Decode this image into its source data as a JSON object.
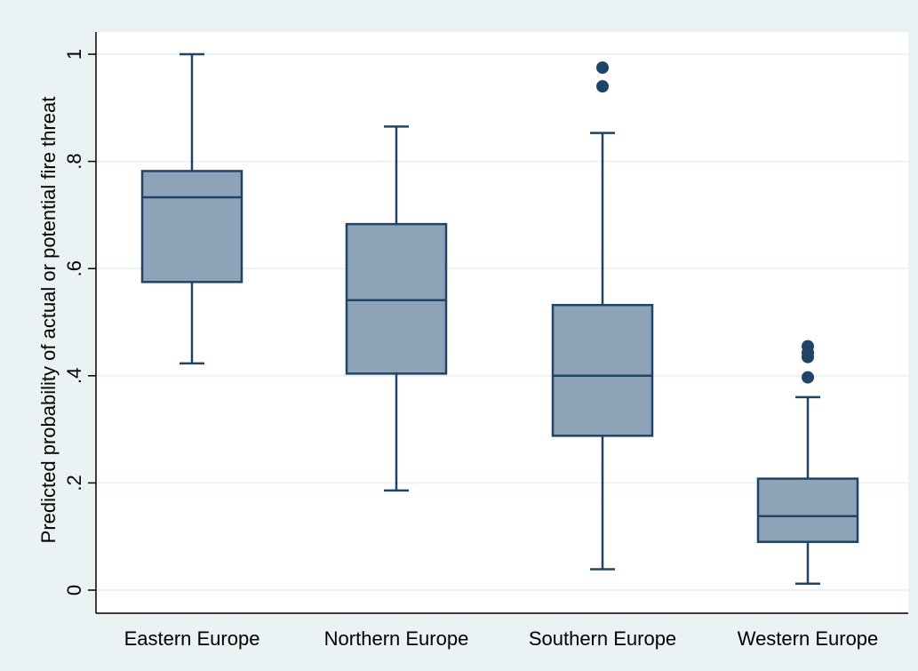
{
  "chart_data": {
    "type": "box",
    "title": "",
    "xlabel": "",
    "ylabel": "Predicted probability of actual or potential fire threat",
    "ylim": [
      0,
      1
    ],
    "yticks": [
      0,
      0.2,
      0.4,
      0.6,
      0.8,
      1
    ],
    "ytick_labels": [
      "0",
      ".2",
      ".4",
      ".6",
      ".8",
      "1"
    ],
    "grid": true,
    "categories": [
      "Eastern Europe",
      "Northern Europe",
      "Southern Europe",
      "Western Europe"
    ],
    "boxes": [
      {
        "category": "Eastern Europe",
        "whisker_low": 0.423,
        "q1": 0.575,
        "median": 0.733,
        "q3": 0.782,
        "whisker_high": 1.0,
        "outliers": []
      },
      {
        "category": "Northern Europe",
        "whisker_low": 0.186,
        "q1": 0.404,
        "median": 0.541,
        "q3": 0.683,
        "whisker_high": 0.865,
        "outliers": []
      },
      {
        "category": "Southern Europe",
        "whisker_low": 0.039,
        "q1": 0.288,
        "median": 0.4,
        "q3": 0.532,
        "whisker_high": 0.853,
        "outliers": [
          0.94,
          0.975
        ]
      },
      {
        "category": "Western Europe",
        "whisker_low": 0.012,
        "q1": 0.09,
        "median": 0.138,
        "q3": 0.208,
        "whisker_high": 0.36,
        "outliers": [
          0.397,
          0.435,
          0.443,
          0.455
        ]
      }
    ],
    "colors": {
      "outer_background": "#eaf2f3",
      "plot_background": "#ffffff",
      "box_fill": "#8da3b8",
      "box_stroke": "#1f4466",
      "outlier": "#1f4466",
      "grid": "#eaf2f3",
      "axis": "#000000"
    }
  }
}
